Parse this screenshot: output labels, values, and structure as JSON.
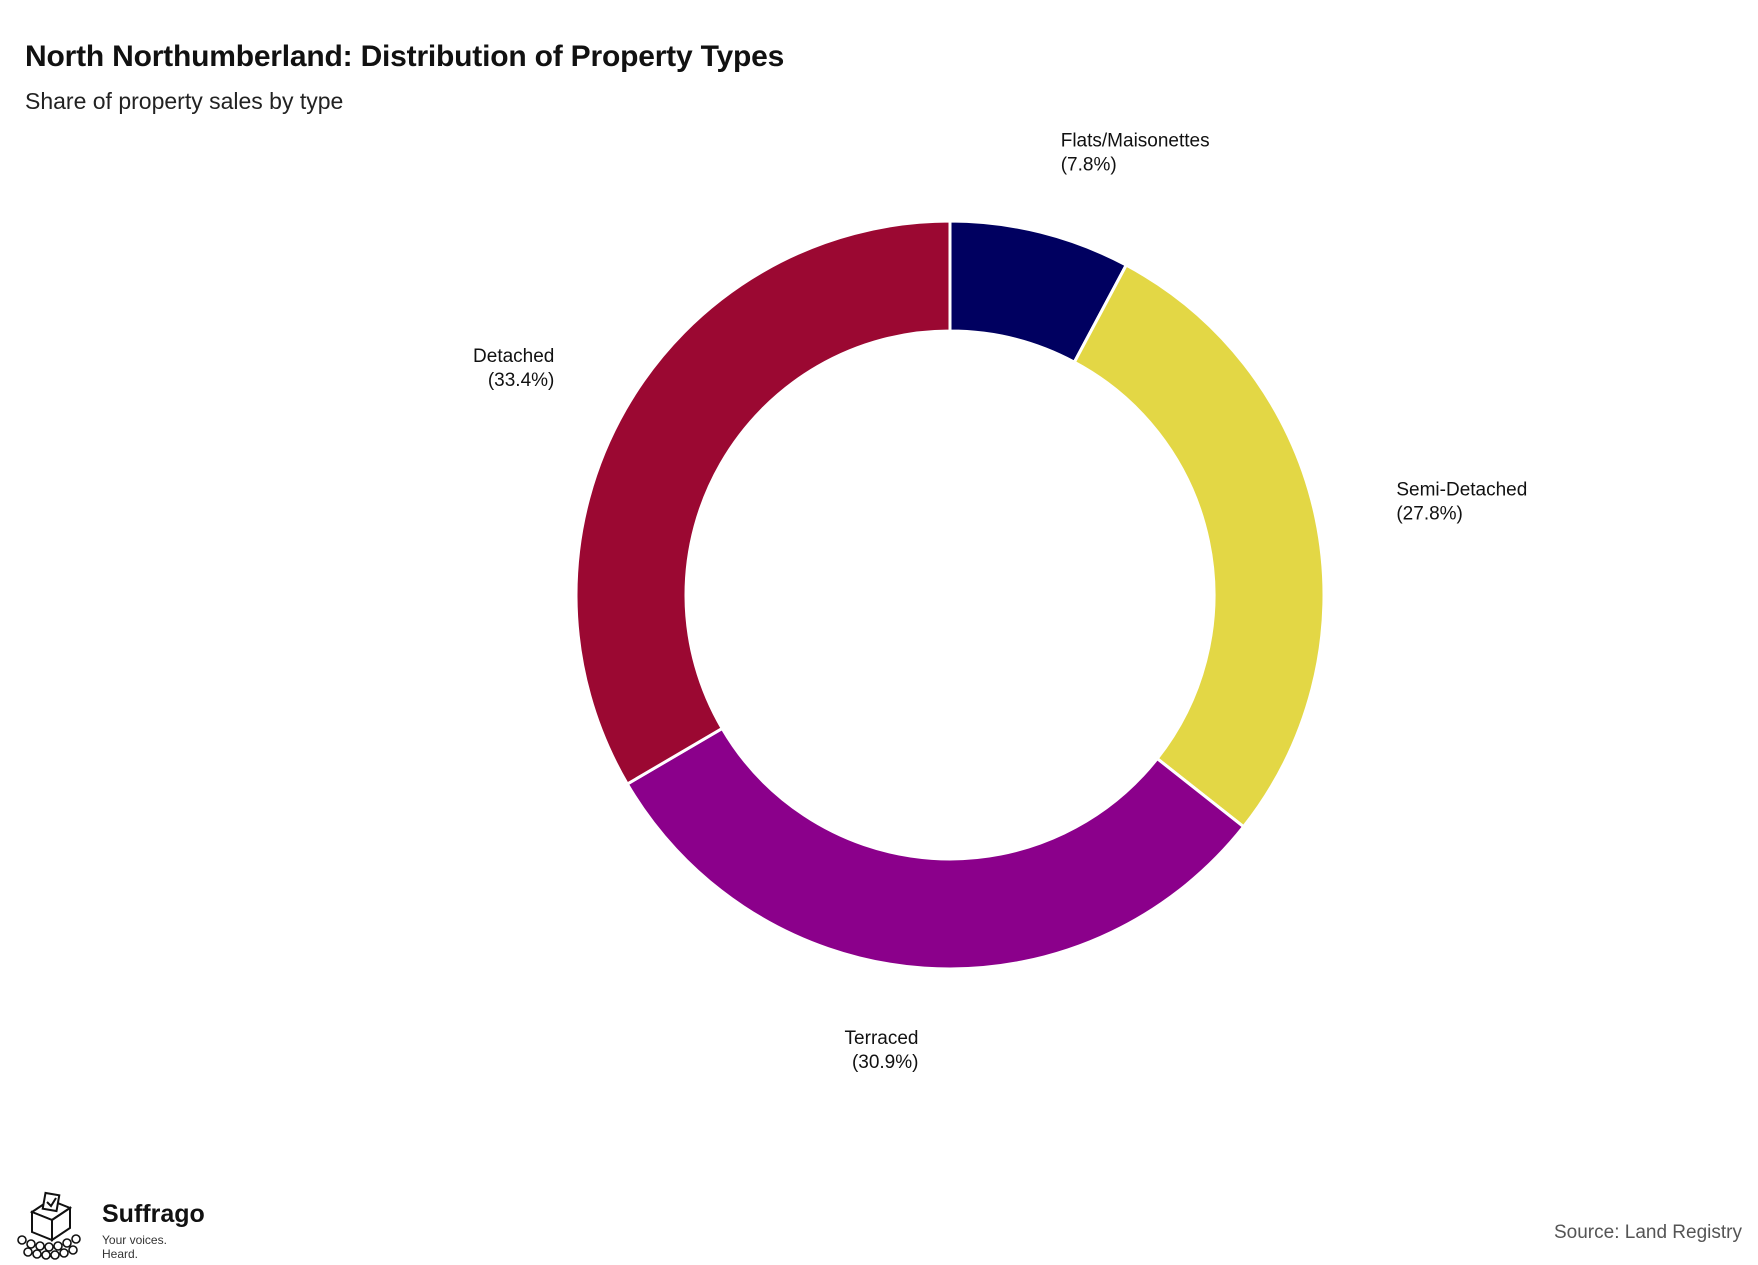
{
  "title": "North Northumberland: Distribution of Property Types",
  "subtitle": "Share of property sales by type",
  "source": "Source: Land Registry",
  "brand": {
    "name": "Suffrago",
    "tagline": "Your voices. Heard.",
    "icon": "ballot-box-crowd-icon"
  },
  "chart_data": {
    "type": "pie",
    "style": "donut",
    "start": "top",
    "direction": "clockwise",
    "legend": "none",
    "slices": [
      {
        "label": "Flats/Maisonettes",
        "value": 7.8,
        "display": "(7.8%)",
        "color": "#000060"
      },
      {
        "label": "Semi-Detached",
        "value": 27.8,
        "display": "(27.8%)",
        "color": "#E3D745"
      },
      {
        "label": "Terraced",
        "value": 30.9,
        "display": "(30.9%)",
        "color": "#8B008B"
      },
      {
        "label": "Detached",
        "value": 33.4,
        "display": "(33.4%)",
        "color": "#9B0832"
      }
    ]
  }
}
